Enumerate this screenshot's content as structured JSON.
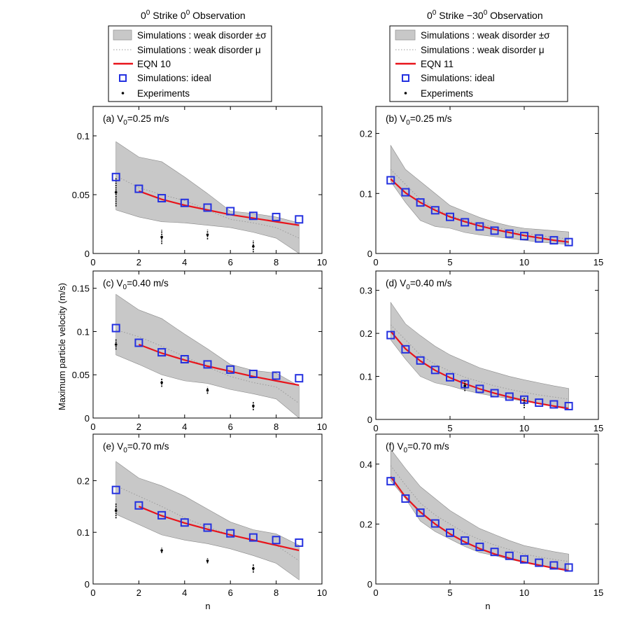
{
  "columns": [
    {
      "title": "0",
      "title_sup": "0",
      "title_rest": " Strike 0",
      "title_sup2": "0",
      "title_end": " Observation"
    },
    {
      "title": "0",
      "title_sup": "0",
      "title_rest": " Strike −30",
      "title_sup2": "0",
      "title_end": " Observation"
    }
  ],
  "legends": [
    {
      "band": "Simulations : weak disorder ±σ",
      "mean": "Simulations : weak disorder μ",
      "eqn": "EQN 10",
      "ideal": "Simulations: ideal",
      "exp": "Experiments"
    },
    {
      "band": "Simulations : weak disorder ±σ",
      "mean": "Simulations : weak disorder μ",
      "eqn": "EQN 11",
      "ideal": "Simulations: ideal",
      "exp": "Experiments"
    }
  ],
  "ylabel": "Maximum particle velocity (m/s)",
  "xlabel": "n",
  "colors": {
    "band": "#c8c8c8",
    "mean": "#999999",
    "eqn": "#e8141b",
    "ideal": "#2431e0",
    "exp": "#000000"
  },
  "chart_data": [
    {
      "type": "line",
      "id": "a",
      "label": "(a)",
      "v_label": "V",
      "v_sub": "0",
      "v_value": "=0.25 m/s",
      "xlim": [
        0,
        10
      ],
      "ylim": [
        0,
        0.125
      ],
      "xticks": [
        0,
        2,
        4,
        6,
        8,
        10
      ],
      "xticklabels": [
        "0",
        "2",
        "4",
        "6",
        "8",
        "10"
      ],
      "yticks": [
        0,
        0.05,
        0.1
      ],
      "yticklabels": [
        "0",
        "0.05",
        "0.1"
      ],
      "band_x": [
        1,
        2,
        3,
        4,
        5,
        6,
        7,
        8,
        9
      ],
      "band_upper": [
        0.095,
        0.082,
        0.078,
        0.065,
        0.051,
        0.036,
        0.034,
        0.031,
        0.026
      ],
      "band_lower": [
        0.037,
        0.031,
        0.027,
        0.026,
        0.024,
        0.022,
        0.018,
        0.013,
        0.0
      ],
      "mean": [
        0.066,
        0.056,
        0.05,
        0.045,
        0.037,
        0.029,
        0.026,
        0.022,
        0.013
      ],
      "eqn_x": [
        2,
        3,
        4,
        5,
        6,
        7,
        8,
        9
      ],
      "eqn_y": [
        0.053,
        0.046,
        0.041,
        0.037,
        0.033,
        0.03,
        0.027,
        0.024
      ],
      "ideal_x": [
        1,
        2,
        3,
        4,
        5,
        6,
        7,
        8,
        9
      ],
      "ideal_y": [
        0.065,
        0.055,
        0.047,
        0.043,
        0.039,
        0.036,
        0.032,
        0.031,
        0.029
      ],
      "exp_x": [
        1,
        3,
        5,
        7
      ],
      "exp_y": [
        0.052,
        0.014,
        0.016,
        0.006
      ],
      "exp_err": [
        0.012,
        0.006,
        0.004,
        0.005
      ]
    },
    {
      "type": "line",
      "id": "b",
      "label": "(b)",
      "v_label": "V",
      "v_sub": "0",
      "v_value": "=0.25 m/s",
      "xlim": [
        0,
        15
      ],
      "ylim": [
        0,
        0.245
      ],
      "xticks": [
        0,
        5,
        10,
        15
      ],
      "xticklabels": [
        "0",
        "5",
        "10",
        "15"
      ],
      "yticks": [
        0,
        0.1,
        0.2
      ],
      "yticklabels": [
        "0",
        "0.1",
        "0.2"
      ],
      "band_x": [
        1,
        2,
        3,
        4,
        5,
        6,
        7,
        8,
        9,
        10,
        11,
        12,
        13
      ],
      "band_upper": [
        0.18,
        0.14,
        0.12,
        0.1,
        0.08,
        0.07,
        0.06,
        0.052,
        0.046,
        0.042,
        0.04,
        0.038,
        0.036
      ],
      "band_lower": [
        0.12,
        0.085,
        0.055,
        0.045,
        0.042,
        0.035,
        0.031,
        0.028,
        0.025,
        0.022,
        0.019,
        0.017,
        0.015
      ],
      "mean": [
        0.14,
        0.115,
        0.09,
        0.075,
        0.063,
        0.055,
        0.049,
        0.044,
        0.039,
        0.034,
        0.03,
        0.027,
        0.024
      ],
      "eqn_x": [
        1,
        2,
        3,
        4,
        5,
        6,
        7,
        8,
        9,
        10,
        11,
        12,
        13
      ],
      "eqn_y": [
        0.124,
        0.101,
        0.085,
        0.072,
        0.061,
        0.053,
        0.046,
        0.04,
        0.035,
        0.03,
        0.026,
        0.022,
        0.019
      ],
      "ideal_x": [
        1,
        2,
        3,
        4,
        5,
        6,
        7,
        8,
        9,
        10,
        11,
        12,
        13
      ],
      "ideal_y": [
        0.122,
        0.102,
        0.085,
        0.072,
        0.061,
        0.052,
        0.045,
        0.038,
        0.033,
        0.029,
        0.025,
        0.022,
        0.019
      ],
      "exp_x": [],
      "exp_y": [],
      "exp_err": []
    },
    {
      "type": "line",
      "id": "c",
      "label": "(c)",
      "v_label": "V",
      "v_sub": "0",
      "v_value": "=0.40 m/s",
      "xlim": [
        0,
        10
      ],
      "ylim": [
        0,
        0.17
      ],
      "xticks": [
        0,
        2,
        4,
        6,
        8,
        10
      ],
      "xticklabels": [
        "0",
        "2",
        "4",
        "6",
        "8",
        "10"
      ],
      "yticks": [
        0,
        0.05,
        0.1,
        0.15
      ],
      "yticklabels": [
        "0",
        "0.05",
        "0.1",
        "0.15"
      ],
      "band_x": [
        1,
        2,
        3,
        4,
        5,
        6,
        7,
        8,
        9
      ],
      "band_upper": [
        0.143,
        0.125,
        0.115,
        0.097,
        0.08,
        0.062,
        0.055,
        0.052,
        0.037
      ],
      "band_lower": [
        0.073,
        0.062,
        0.05,
        0.043,
        0.04,
        0.033,
        0.028,
        0.022,
        0.0
      ],
      "mean": [
        0.102,
        0.094,
        0.083,
        0.071,
        0.059,
        0.048,
        0.041,
        0.036,
        0.017
      ],
      "eqn_x": [
        2,
        3,
        4,
        5,
        6,
        7,
        8,
        9
      ],
      "eqn_y": [
        0.085,
        0.075,
        0.067,
        0.06,
        0.054,
        0.048,
        0.043,
        0.038
      ],
      "ideal_x": [
        1,
        2,
        3,
        4,
        5,
        6,
        7,
        8,
        9
      ],
      "ideal_y": [
        0.104,
        0.087,
        0.076,
        0.068,
        0.062,
        0.056,
        0.051,
        0.049,
        0.046
      ],
      "exp_x": [
        1,
        3,
        5,
        7
      ],
      "exp_y": [
        0.085,
        0.041,
        0.032,
        0.014
      ],
      "exp_err": [
        0.006,
        0.005,
        0.004,
        0.005
      ]
    },
    {
      "type": "line",
      "id": "d",
      "label": "(d)",
      "v_label": "V",
      "v_sub": "0",
      "v_value": "=0.40 m/s",
      "xlim": [
        0,
        15
      ],
      "ylim": [
        0,
        0.345
      ],
      "xticks": [
        0,
        5,
        10,
        15
      ],
      "xticklabels": [
        "0",
        "5",
        "10",
        "15"
      ],
      "yticks": [
        0,
        0.1,
        0.2,
        0.3
      ],
      "yticklabels": [
        "0",
        "0.1",
        "0.2",
        "0.3"
      ],
      "band_x": [
        1,
        2,
        3,
        4,
        5,
        6,
        7,
        8,
        9,
        10,
        11,
        12,
        13
      ],
      "band_upper": [
        0.272,
        0.222,
        0.195,
        0.17,
        0.15,
        0.135,
        0.12,
        0.11,
        0.1,
        0.092,
        0.085,
        0.078,
        0.072
      ],
      "band_lower": [
        0.185,
        0.14,
        0.1,
        0.085,
        0.078,
        0.068,
        0.06,
        0.054,
        0.048,
        0.042,
        0.037,
        0.032,
        0.028
      ],
      "mean": [
        0.22,
        0.185,
        0.15,
        0.128,
        0.112,
        0.098,
        0.088,
        0.078,
        0.07,
        0.063,
        0.057,
        0.052,
        0.047
      ],
      "eqn_x": [
        1,
        2,
        3,
        4,
        5,
        6,
        7,
        8,
        9,
        10,
        11,
        12,
        13
      ],
      "eqn_y": [
        0.205,
        0.164,
        0.136,
        0.114,
        0.097,
        0.083,
        0.071,
        0.061,
        0.052,
        0.044,
        0.037,
        0.031,
        0.025
      ],
      "ideal_x": [
        1,
        2,
        3,
        4,
        5,
        6,
        7,
        8,
        9,
        10,
        11,
        12,
        13
      ],
      "ideal_y": [
        0.196,
        0.163,
        0.137,
        0.115,
        0.098,
        0.082,
        0.071,
        0.061,
        0.053,
        0.046,
        0.039,
        0.035,
        0.031
      ],
      "exp_x": [
        6,
        10
      ],
      "exp_y": [
        0.078,
        0.038
      ],
      "exp_err": [
        0.012,
        0.012
      ]
    },
    {
      "type": "line",
      "id": "e",
      "label": "(e)",
      "v_label": "V",
      "v_sub": "0",
      "v_value": "=0.70 m/s",
      "xlim": [
        0,
        10
      ],
      "ylim": [
        0,
        0.29
      ],
      "xticks": [
        0,
        2,
        4,
        6,
        8,
        10
      ],
      "xticklabels": [
        "0",
        "2",
        "4",
        "6",
        "8",
        "10"
      ],
      "yticks": [
        0,
        0.1,
        0.2
      ],
      "yticklabels": [
        "0",
        "0.1",
        "0.2"
      ],
      "band_x": [
        1,
        2,
        3,
        4,
        5,
        6,
        7,
        8,
        9
      ],
      "band_upper": [
        0.237,
        0.205,
        0.19,
        0.17,
        0.145,
        0.12,
        0.105,
        0.097,
        0.075
      ],
      "band_lower": [
        0.135,
        0.115,
        0.095,
        0.085,
        0.078,
        0.068,
        0.055,
        0.04,
        0.008
      ],
      "mean": [
        0.19,
        0.17,
        0.15,
        0.128,
        0.11,
        0.095,
        0.085,
        0.075,
        0.045
      ],
      "eqn_x": [
        2,
        3,
        4,
        5,
        6,
        7,
        8,
        9
      ],
      "eqn_y": [
        0.15,
        0.132,
        0.118,
        0.106,
        0.095,
        0.085,
        0.075,
        0.065
      ],
      "ideal_x": [
        1,
        2,
        3,
        4,
        5,
        6,
        7,
        8,
        9
      ],
      "ideal_y": [
        0.182,
        0.152,
        0.133,
        0.119,
        0.109,
        0.098,
        0.09,
        0.085,
        0.08
      ],
      "exp_x": [
        1,
        3,
        5,
        7
      ],
      "exp_y": [
        0.142,
        0.065,
        0.045,
        0.03
      ],
      "exp_err": [
        0.015,
        0.005,
        0.005,
        0.008
      ]
    },
    {
      "type": "line",
      "id": "f",
      "label": "(f)",
      "v_label": "V",
      "v_sub": "0",
      "v_value": "=0.70 m/s",
      "xlim": [
        0,
        15
      ],
      "ylim": [
        0,
        0.5
      ],
      "xticks": [
        0,
        5,
        10,
        15
      ],
      "xticklabels": [
        "0",
        "5",
        "10",
        "15"
      ],
      "yticks": [
        0,
        0.2,
        0.4
      ],
      "yticklabels": [
        "0",
        "0.2",
        "0.4"
      ],
      "band_x": [
        1,
        2,
        3,
        4,
        5,
        6,
        7,
        8,
        9,
        10,
        11,
        12,
        13
      ],
      "band_upper": [
        0.45,
        0.385,
        0.325,
        0.285,
        0.245,
        0.215,
        0.185,
        0.165,
        0.145,
        0.128,
        0.118,
        0.108,
        0.1
      ],
      "band_lower": [
        0.345,
        0.285,
        0.21,
        0.175,
        0.15,
        0.125,
        0.105,
        0.095,
        0.082,
        0.072,
        0.063,
        0.056,
        0.05
      ],
      "mean": [
        0.395,
        0.33,
        0.27,
        0.23,
        0.2,
        0.17,
        0.148,
        0.13,
        0.115,
        0.1,
        0.09,
        0.082,
        0.075
      ],
      "eqn_x": [
        1,
        2,
        3,
        4,
        5,
        6,
        7,
        8,
        9,
        10,
        11,
        12,
        13
      ],
      "eqn_y": [
        0.358,
        0.29,
        0.24,
        0.2,
        0.167,
        0.14,
        0.118,
        0.1,
        0.086,
        0.073,
        0.063,
        0.053,
        0.045
      ],
      "ideal_x": [
        1,
        2,
        3,
        4,
        5,
        6,
        7,
        8,
        9,
        10,
        11,
        12,
        13
      ],
      "ideal_y": [
        0.343,
        0.285,
        0.238,
        0.202,
        0.171,
        0.145,
        0.124,
        0.107,
        0.094,
        0.082,
        0.071,
        0.062,
        0.055
      ],
      "exp_x": [],
      "exp_y": [],
      "exp_err": []
    }
  ]
}
